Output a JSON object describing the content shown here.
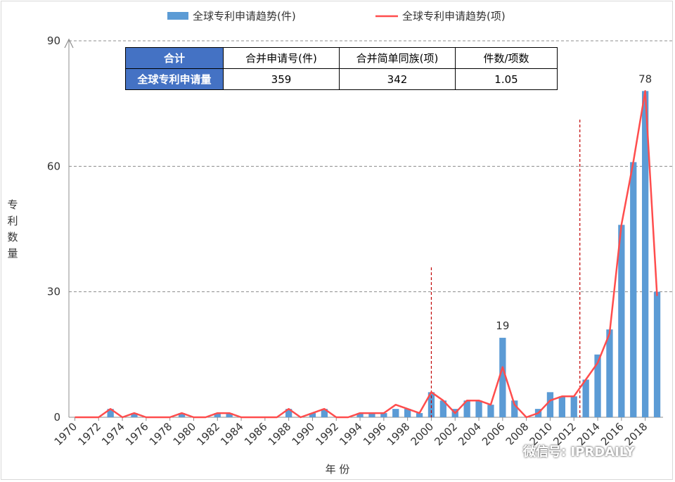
{
  "legend": {
    "bar_label": "全球专利申请趋势(件)",
    "line_label": "全球专利申请趋势(项)"
  },
  "y_axis_title": "专利数量",
  "x_axis_title": "年 份",
  "summary_table": {
    "headers": [
      "合计",
      "合并申请号(件)",
      "合并简单同族(项)",
      "件数/项数"
    ],
    "row_label": "全球专利申请量",
    "values": [
      "359",
      "342",
      "1.05"
    ]
  },
  "watermark": "微信号: IPRDAILY",
  "colors": {
    "bar": "#5b9bd5",
    "line": "#ff4d4d",
    "marker_line": "#c00000",
    "table_header": "#4472c4"
  },
  "chart_data": {
    "type": "bar",
    "categories": [
      1970,
      1971,
      1972,
      1973,
      1974,
      1975,
      1976,
      1977,
      1978,
      1979,
      1980,
      1981,
      1982,
      1983,
      1984,
      1985,
      1986,
      1987,
      1988,
      1989,
      1990,
      1991,
      1992,
      1993,
      1994,
      1995,
      1996,
      1997,
      1998,
      1999,
      2000,
      2001,
      2002,
      2003,
      2004,
      2005,
      2006,
      2007,
      2008,
      2009,
      2010,
      2011,
      2012,
      2013,
      2014,
      2015,
      2016,
      2017,
      2018,
      2019
    ],
    "tick_labels": [
      "1970",
      "1972",
      "1974",
      "1976",
      "1978",
      "1980",
      "1982",
      "1984",
      "1986",
      "1988",
      "1990",
      "1992",
      "1994",
      "1996",
      "1998",
      "2000",
      "2002",
      "2004",
      "2006",
      "2008",
      "2010",
      "2012",
      "2014",
      "2016",
      "2018"
    ],
    "series": [
      {
        "name": "全球专利申请趋势(件)",
        "type": "bar",
        "values": [
          0,
          0,
          0,
          2,
          0,
          1,
          0,
          0,
          0,
          1,
          0,
          0,
          1,
          1,
          0,
          0,
          0,
          0,
          2,
          0,
          1,
          2,
          0,
          0,
          1,
          1,
          1,
          2,
          2,
          1,
          6,
          4,
          2,
          4,
          4,
          3,
          19,
          4,
          0,
          2,
          6,
          5,
          5,
          9,
          15,
          21,
          46,
          61,
          78,
          30
        ]
      },
      {
        "name": "全球专利申请趋势(项)",
        "type": "line",
        "values": [
          0,
          0,
          0,
          2,
          0,
          1,
          0,
          0,
          0,
          1,
          0,
          0,
          1,
          1,
          0,
          0,
          0,
          0,
          2,
          0,
          1,
          2,
          0,
          0,
          1,
          1,
          1,
          3,
          2,
          1,
          6,
          4,
          1,
          4,
          4,
          3,
          12,
          3,
          0,
          1,
          4,
          5,
          5,
          9,
          13,
          20,
          46,
          61,
          78,
          29
        ]
      }
    ],
    "data_labels": [
      {
        "year": 2006,
        "text": "19"
      },
      {
        "year": 2018,
        "text": "78"
      }
    ],
    "divider_years": [
      2000,
      2012.5
    ],
    "yticks": [
      0,
      30,
      60,
      90
    ],
    "ylim": [
      0,
      90
    ],
    "grid": "dashed horizontal",
    "legend_position": "top"
  }
}
